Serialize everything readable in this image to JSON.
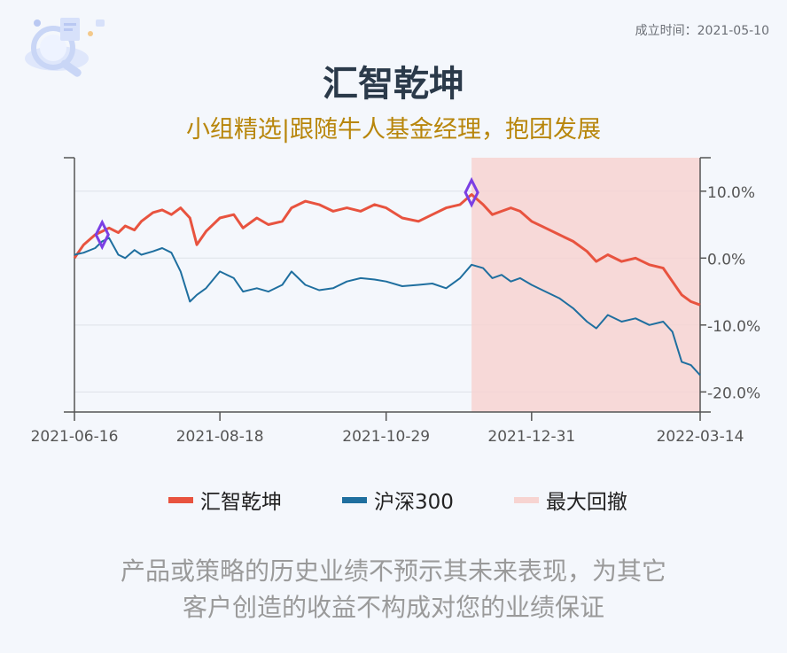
{
  "header": {
    "founded": "成立时间：2021-05-10",
    "title": "汇智乾坤",
    "subtitle": "小组精选|跟随牛人基金经理，抱团发展"
  },
  "legend": [
    {
      "label": "汇智乾坤",
      "color": "#e8533f"
    },
    {
      "label": "沪深300",
      "color": "#1f6f9f"
    },
    {
      "label": "最大回撤",
      "color": "#f7d4d1"
    }
  ],
  "disclaimer": {
    "line1": "产品或策略的历史业绩不预示其未来表现，为其它",
    "line2": "客户创造的收益不构成对您的业绩保证"
  },
  "chart_data": {
    "type": "line",
    "x_ticks": [
      "2021-06-16",
      "2021-08-18",
      "2021-10-29",
      "2021-12-31",
      "2022-03-14"
    ],
    "y_ticks": [
      "10.0%",
      "0.0%",
      "-10.0%",
      "-20.0%"
    ],
    "ylim": [
      -23,
      15
    ],
    "grid": true,
    "legend_position": "bottom",
    "drawdown_range": [
      "2021-12-05",
      "2022-03-14"
    ],
    "colors": {
      "fund": "#e8533f",
      "index": "#1f6f9f",
      "drawdown": "#f7d4d1",
      "marker": "#7b3fe4"
    },
    "series": [
      {
        "name": "汇智乾坤",
        "points": [
          [
            "2021-06-16",
            0.0
          ],
          [
            "2021-06-20",
            2.0
          ],
          [
            "2021-06-25",
            3.5
          ],
          [
            "2021-06-28",
            4.0
          ],
          [
            "2021-07-01",
            4.5
          ],
          [
            "2021-07-05",
            3.8
          ],
          [
            "2021-07-08",
            4.8
          ],
          [
            "2021-07-12",
            4.2
          ],
          [
            "2021-07-15",
            5.5
          ],
          [
            "2021-07-20",
            6.8
          ],
          [
            "2021-07-24",
            7.2
          ],
          [
            "2021-07-28",
            6.5
          ],
          [
            "2021-08-01",
            7.5
          ],
          [
            "2021-08-05",
            6.0
          ],
          [
            "2021-08-08",
            2.0
          ],
          [
            "2021-08-12",
            4.0
          ],
          [
            "2021-08-18",
            6.0
          ],
          [
            "2021-08-24",
            6.5
          ],
          [
            "2021-08-28",
            4.5
          ],
          [
            "2021-09-03",
            6.0
          ],
          [
            "2021-09-08",
            5.0
          ],
          [
            "2021-09-14",
            5.5
          ],
          [
            "2021-09-18",
            7.5
          ],
          [
            "2021-09-24",
            8.5
          ],
          [
            "2021-09-30",
            8.0
          ],
          [
            "2021-10-06",
            7.0
          ],
          [
            "2021-10-12",
            7.5
          ],
          [
            "2021-10-18",
            7.0
          ],
          [
            "2021-10-24",
            8.0
          ],
          [
            "2021-10-29",
            7.5
          ],
          [
            "2021-11-05",
            6.0
          ],
          [
            "2021-11-12",
            5.5
          ],
          [
            "2021-11-18",
            6.5
          ],
          [
            "2021-11-24",
            7.5
          ],
          [
            "2021-11-30",
            8.0
          ],
          [
            "2021-12-05",
            9.5
          ],
          [
            "2021-12-10",
            8.0
          ],
          [
            "2021-12-14",
            6.5
          ],
          [
            "2021-12-18",
            7.0
          ],
          [
            "2021-12-22",
            7.5
          ],
          [
            "2021-12-26",
            7.0
          ],
          [
            "2021-12-31",
            5.5
          ],
          [
            "2022-01-06",
            4.5
          ],
          [
            "2022-01-12",
            3.5
          ],
          [
            "2022-01-18",
            2.5
          ],
          [
            "2022-01-24",
            1.0
          ],
          [
            "2022-01-28",
            -0.5
          ],
          [
            "2022-02-02",
            0.5
          ],
          [
            "2022-02-08",
            -0.5
          ],
          [
            "2022-02-14",
            0.0
          ],
          [
            "2022-02-20",
            -1.0
          ],
          [
            "2022-02-26",
            -1.5
          ],
          [
            "2022-03-02",
            -3.5
          ],
          [
            "2022-03-06",
            -5.5
          ],
          [
            "2022-03-10",
            -6.5
          ],
          [
            "2022-03-14",
            -7.0
          ]
        ]
      },
      {
        "name": "沪深300",
        "points": [
          [
            "2021-06-16",
            0.5
          ],
          [
            "2021-06-20",
            0.8
          ],
          [
            "2021-06-25",
            1.5
          ],
          [
            "2021-06-28",
            2.5
          ],
          [
            "2021-07-01",
            3.0
          ],
          [
            "2021-07-05",
            0.5
          ],
          [
            "2021-07-08",
            0.0
          ],
          [
            "2021-07-12",
            1.2
          ],
          [
            "2021-07-15",
            0.5
          ],
          [
            "2021-07-20",
            1.0
          ],
          [
            "2021-07-24",
            1.5
          ],
          [
            "2021-07-28",
            0.8
          ],
          [
            "2021-08-01",
            -2.0
          ],
          [
            "2021-08-05",
            -6.5
          ],
          [
            "2021-08-08",
            -5.5
          ],
          [
            "2021-08-12",
            -4.5
          ],
          [
            "2021-08-18",
            -2.0
          ],
          [
            "2021-08-24",
            -3.0
          ],
          [
            "2021-08-28",
            -5.0
          ],
          [
            "2021-09-03",
            -4.5
          ],
          [
            "2021-09-08",
            -5.0
          ],
          [
            "2021-09-14",
            -4.0
          ],
          [
            "2021-09-18",
            -2.0
          ],
          [
            "2021-09-24",
            -4.0
          ],
          [
            "2021-09-30",
            -4.8
          ],
          [
            "2021-10-06",
            -4.5
          ],
          [
            "2021-10-12",
            -3.5
          ],
          [
            "2021-10-18",
            -3.0
          ],
          [
            "2021-10-24",
            -3.2
          ],
          [
            "2021-10-29",
            -3.5
          ],
          [
            "2021-11-05",
            -4.2
          ],
          [
            "2021-11-12",
            -4.0
          ],
          [
            "2021-11-18",
            -3.8
          ],
          [
            "2021-11-24",
            -4.5
          ],
          [
            "2021-11-30",
            -3.0
          ],
          [
            "2021-12-05",
            -1.0
          ],
          [
            "2021-12-10",
            -1.5
          ],
          [
            "2021-12-14",
            -3.0
          ],
          [
            "2021-12-18",
            -2.5
          ],
          [
            "2021-12-22",
            -3.5
          ],
          [
            "2021-12-26",
            -3.0
          ],
          [
            "2021-12-31",
            -4.0
          ],
          [
            "2022-01-06",
            -5.0
          ],
          [
            "2022-01-12",
            -6.0
          ],
          [
            "2022-01-18",
            -7.5
          ],
          [
            "2022-01-24",
            -9.5
          ],
          [
            "2022-01-28",
            -10.5
          ],
          [
            "2022-02-02",
            -8.5
          ],
          [
            "2022-02-08",
            -9.5
          ],
          [
            "2022-02-14",
            -9.0
          ],
          [
            "2022-02-20",
            -10.0
          ],
          [
            "2022-02-26",
            -9.5
          ],
          [
            "2022-03-02",
            -11.0
          ],
          [
            "2022-03-06",
            -15.5
          ],
          [
            "2022-03-10",
            -16.0
          ],
          [
            "2022-03-14",
            -17.5
          ]
        ]
      }
    ],
    "markers": [
      [
        "2021-06-28",
        3.5
      ],
      [
        "2021-12-05",
        9.8
      ]
    ]
  }
}
